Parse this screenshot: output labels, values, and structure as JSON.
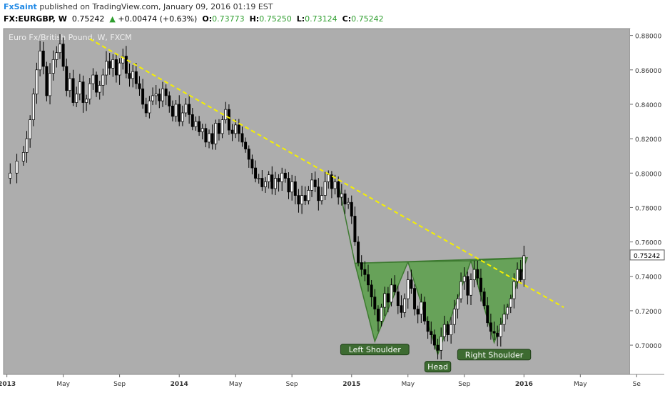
{
  "header": {
    "author": "FxSaint",
    "published_text": " published on TradingView.com, January 09, 2016 01:19 EST",
    "symbol": "FX:EURGBP, W",
    "last": "0.75242",
    "change_arrow": "▲",
    "change": "+0.00474 (+0.63%)",
    "o_label": "O:",
    "o_value": "0.73773",
    "h_label": "H:",
    "h_value": "0.75250",
    "l_label": "L:",
    "l_value": "0.73124",
    "c_label": "C:",
    "c_value": "0.75242"
  },
  "colors": {
    "plot_bg": "#adadad",
    "axis_bg": "#ffffff",
    "trendline": "#f5f000",
    "pattern_fill": "#5aa04a",
    "pattern_stroke": "#3d7a30",
    "label_bg": "#3d6b31",
    "up_candle": "#ffffff",
    "down_candle": "#000000"
  },
  "chart_data": {
    "type": "candlestick",
    "title": "Euro Fx/British Pound, W, FXCM",
    "y_ticks": [
      "0.88000",
      "0.86000",
      "0.84000",
      "0.82000",
      "0.80000",
      "0.78000",
      "0.76000",
      "0.74000",
      "0.72000",
      "0.70000"
    ],
    "ylim": [
      0.683,
      0.884
    ],
    "last_price_label": "0.75242",
    "last_price": 0.75242,
    "x_ticks": [
      {
        "label": "2013",
        "t": 0
      },
      {
        "label": "May",
        "t": 17
      },
      {
        "label": "Sep",
        "t": 34
      },
      {
        "label": "2014",
        "t": 52
      },
      {
        "label": "May",
        "t": 69
      },
      {
        "label": "Sep",
        "t": 86
      },
      {
        "label": "2015",
        "t": 104
      },
      {
        "label": "May",
        "t": 121
      },
      {
        "label": "Sep",
        "t": 138
      },
      {
        "label": "2016",
        "t": 156
      },
      {
        "label": "May",
        "t": 173
      },
      {
        "label": "Se",
        "t": 190
      }
    ],
    "xlim": [
      -1,
      188
    ],
    "close_series": [
      {
        "t": -1,
        "c": 0.797
      },
      {
        "t": 1,
        "c": 0.8
      },
      {
        "t": 3,
        "c": 0.807
      },
      {
        "t": 5,
        "c": 0.812
      },
      {
        "t": 6,
        "c": 0.82
      },
      {
        "t": 7,
        "c": 0.831
      },
      {
        "t": 8,
        "c": 0.846
      },
      {
        "t": 9,
        "c": 0.86
      },
      {
        "t": 10,
        "c": 0.871
      },
      {
        "t": 11,
        "c": 0.862
      },
      {
        "t": 12,
        "c": 0.845
      },
      {
        "t": 13,
        "c": 0.858
      },
      {
        "t": 14,
        "c": 0.866
      },
      {
        "t": 15,
        "c": 0.87
      },
      {
        "t": 16,
        "c": 0.875
      },
      {
        "t": 17,
        "c": 0.862
      },
      {
        "t": 18,
        "c": 0.848
      },
      {
        "t": 19,
        "c": 0.855
      },
      {
        "t": 20,
        "c": 0.841
      },
      {
        "t": 21,
        "c": 0.846
      },
      {
        "t": 22,
        "c": 0.853
      },
      {
        "t": 23,
        "c": 0.841
      },
      {
        "t": 24,
        "c": 0.843
      },
      {
        "t": 25,
        "c": 0.852
      },
      {
        "t": 26,
        "c": 0.857
      },
      {
        "t": 27,
        "c": 0.847
      },
      {
        "t": 28,
        "c": 0.851
      },
      {
        "t": 29,
        "c": 0.857
      },
      {
        "t": 30,
        "c": 0.865
      },
      {
        "t": 31,
        "c": 0.861
      },
      {
        "t": 32,
        "c": 0.866
      },
      {
        "t": 33,
        "c": 0.857
      },
      {
        "t": 34,
        "c": 0.864
      },
      {
        "t": 35,
        "c": 0.868
      },
      {
        "t": 36,
        "c": 0.858
      },
      {
        "t": 37,
        "c": 0.855
      },
      {
        "t": 38,
        "c": 0.859
      },
      {
        "t": 39,
        "c": 0.852
      },
      {
        "t": 40,
        "c": 0.849
      },
      {
        "t": 41,
        "c": 0.84
      },
      {
        "t": 42,
        "c": 0.835
      },
      {
        "t": 43,
        "c": 0.842
      },
      {
        "t": 44,
        "c": 0.845
      },
      {
        "t": 45,
        "c": 0.846
      },
      {
        "t": 46,
        "c": 0.842
      },
      {
        "t": 47,
        "c": 0.849
      },
      {
        "t": 48,
        "c": 0.845
      },
      {
        "t": 49,
        "c": 0.839
      },
      {
        "t": 50,
        "c": 0.833
      },
      {
        "t": 51,
        "c": 0.84
      },
      {
        "t": 52,
        "c": 0.83
      },
      {
        "t": 53,
        "c": 0.835
      },
      {
        "t": 54,
        "c": 0.84
      },
      {
        "t": 55,
        "c": 0.834
      },
      {
        "t": 56,
        "c": 0.827
      },
      {
        "t": 57,
        "c": 0.83
      },
      {
        "t": 58,
        "c": 0.824
      },
      {
        "t": 59,
        "c": 0.826
      },
      {
        "t": 60,
        "c": 0.818
      },
      {
        "t": 61,
        "c": 0.823
      },
      {
        "t": 62,
        "c": 0.817
      },
      {
        "t": 63,
        "c": 0.829
      },
      {
        "t": 64,
        "c": 0.823
      },
      {
        "t": 65,
        "c": 0.831
      },
      {
        "t": 66,
        "c": 0.837
      },
      {
        "t": 67,
        "c": 0.825
      },
      {
        "t": 68,
        "c": 0.823
      },
      {
        "t": 69,
        "c": 0.828
      },
      {
        "t": 70,
        "c": 0.823
      },
      {
        "t": 71,
        "c": 0.818
      },
      {
        "t": 72,
        "c": 0.814
      },
      {
        "t": 73,
        "c": 0.808
      },
      {
        "t": 74,
        "c": 0.803
      },
      {
        "t": 75,
        "c": 0.797
      },
      {
        "t": 76,
        "c": 0.797
      },
      {
        "t": 77,
        "c": 0.792
      },
      {
        "t": 78,
        "c": 0.795
      },
      {
        "t": 79,
        "c": 0.799
      },
      {
        "t": 80,
        "c": 0.791
      },
      {
        "t": 81,
        "c": 0.797
      },
      {
        "t": 82,
        "c": 0.795
      },
      {
        "t": 83,
        "c": 0.8
      },
      {
        "t": 84,
        "c": 0.797
      },
      {
        "t": 85,
        "c": 0.789
      },
      {
        "t": 86,
        "c": 0.795
      },
      {
        "t": 87,
        "c": 0.787
      },
      {
        "t": 88,
        "c": 0.782
      },
      {
        "t": 89,
        "c": 0.787
      },
      {
        "t": 90,
        "c": 0.784
      },
      {
        "t": 91,
        "c": 0.79
      },
      {
        "t": 92,
        "c": 0.796
      },
      {
        "t": 93,
        "c": 0.792
      },
      {
        "t": 94,
        "c": 0.784
      },
      {
        "t": 95,
        "c": 0.787
      },
      {
        "t": 96,
        "c": 0.795
      },
      {
        "t": 97,
        "c": 0.799
      },
      {
        "t": 98,
        "c": 0.791
      },
      {
        "t": 99,
        "c": 0.795
      },
      {
        "t": 100,
        "c": 0.786
      },
      {
        "t": 101,
        "c": 0.788
      },
      {
        "t": 102,
        "c": 0.782
      },
      {
        "t": 103,
        "c": 0.783
      },
      {
        "t": 104,
        "c": 0.775
      },
      {
        "t": 105,
        "c": 0.76
      },
      {
        "t": 106,
        "c": 0.748
      },
      {
        "t": 107,
        "c": 0.744
      },
      {
        "t": 108,
        "c": 0.741
      },
      {
        "t": 109,
        "c": 0.735
      },
      {
        "t": 110,
        "c": 0.728
      },
      {
        "t": 111,
        "c": 0.721
      },
      {
        "t": 112,
        "c": 0.714
      },
      {
        "t": 113,
        "c": 0.722
      },
      {
        "t": 114,
        "c": 0.73
      },
      {
        "t": 115,
        "c": 0.725
      },
      {
        "t": 116,
        "c": 0.735
      },
      {
        "t": 117,
        "c": 0.731
      },
      {
        "t": 118,
        "c": 0.723
      },
      {
        "t": 119,
        "c": 0.719
      },
      {
        "t": 120,
        "c": 0.727
      },
      {
        "t": 121,
        "c": 0.738
      },
      {
        "t": 122,
        "c": 0.733
      },
      {
        "t": 123,
        "c": 0.721
      },
      {
        "t": 124,
        "c": 0.718
      },
      {
        "t": 125,
        "c": 0.725
      },
      {
        "t": 126,
        "c": 0.714
      },
      {
        "t": 127,
        "c": 0.708
      },
      {
        "t": 128,
        "c": 0.706
      },
      {
        "t": 129,
        "c": 0.7
      },
      {
        "t": 130,
        "c": 0.697
      },
      {
        "t": 131,
        "c": 0.705
      },
      {
        "t": 132,
        "c": 0.712
      },
      {
        "t": 133,
        "c": 0.706
      },
      {
        "t": 134,
        "c": 0.712
      },
      {
        "t": 135,
        "c": 0.721
      },
      {
        "t": 136,
        "c": 0.727
      },
      {
        "t": 137,
        "c": 0.737
      },
      {
        "t": 138,
        "c": 0.74
      },
      {
        "t": 139,
        "c": 0.729
      },
      {
        "t": 140,
        "c": 0.738
      },
      {
        "t": 141,
        "c": 0.744
      },
      {
        "t": 142,
        "c": 0.739
      },
      {
        "t": 143,
        "c": 0.731
      },
      {
        "t": 144,
        "c": 0.723
      },
      {
        "t": 145,
        "c": 0.713
      },
      {
        "t": 146,
        "c": 0.708
      },
      {
        "t": 147,
        "c": 0.707
      },
      {
        "t": 148,
        "c": 0.705
      },
      {
        "t": 149,
        "c": 0.712
      },
      {
        "t": 150,
        "c": 0.718
      },
      {
        "t": 151,
        "c": 0.722
      },
      {
        "t": 152,
        "c": 0.727
      },
      {
        "t": 153,
        "c": 0.737
      },
      {
        "t": 154,
        "c": 0.744
      },
      {
        "t": 155,
        "c": 0.738
      },
      {
        "t": 156,
        "c": 0.752
      }
    ],
    "trendline": {
      "from": {
        "t": 25,
        "p": 0.878
      },
      "to": {
        "t": 168,
        "p": 0.722
      }
    },
    "pattern": {
      "left_shoulder": [
        {
          "t": 105,
          "p": 0.7476
        },
        {
          "t": 111,
          "p": 0.7022
        },
        {
          "t": 121,
          "p": 0.7484
        }
      ],
      "head": [
        {
          "t": 121,
          "p": 0.7484
        },
        {
          "t": 130,
          "p": 0.6946
        },
        {
          "t": 140,
          "p": 0.7491
        }
      ],
      "right_shoulder": [
        {
          "t": 140,
          "p": 0.7491
        },
        {
          "t": 147,
          "p": 0.7015
        },
        {
          "t": 157,
          "p": 0.7508
        }
      ],
      "left_rise": [
        {
          "t": 100,
          "p": 0.794
        },
        {
          "t": 105,
          "p": 0.7476
        }
      ],
      "neckline": [
        {
          "t": 105,
          "p": 0.7476
        },
        {
          "t": 157,
          "p": 0.7508
        }
      ]
    },
    "annotations": [
      {
        "text": "Left Shoulder",
        "t": 111,
        "p": 0.6975
      },
      {
        "text": "Head",
        "t": 130,
        "p": 0.6875
      },
      {
        "text": "Right Shoulder",
        "t": 147,
        "p": 0.6945
      }
    ]
  }
}
